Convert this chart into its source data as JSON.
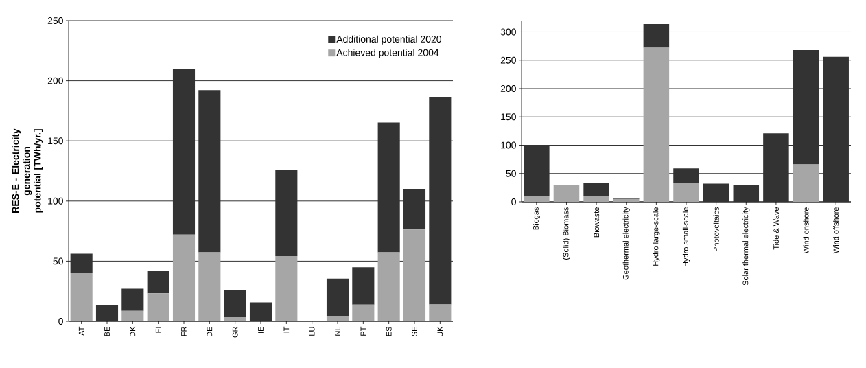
{
  "chart_data": [
    {
      "type": "bar",
      "stacked": true,
      "ylabel": "RES-E - Electricity generation potential [TWh/yr.]",
      "categories": [
        "AT",
        "BE",
        "DK",
        "FI",
        "FR",
        "DE",
        "GR",
        "IE",
        "IT",
        "LU",
        "NL",
        "PT",
        "ES",
        "SE",
        "UK"
      ],
      "series": [
        {
          "name": "Achieved potential 2004",
          "color": "#a6a6a6",
          "values": [
            40.5,
            0,
            8.7,
            23.2,
            72,
            57.4,
            3.4,
            0,
            54.2,
            0,
            4.6,
            13.9,
            57.4,
            76.3,
            14
          ]
        },
        {
          "name": "Additional potential 2020",
          "color": "#333333",
          "values": [
            15.7,
            13.7,
            18.4,
            18.5,
            138,
            134.8,
            22.8,
            15.7,
            71.5,
            0,
            30.9,
            31,
            107.9,
            33.7,
            172
          ]
        }
      ],
      "ylim": [
        0,
        250
      ],
      "yticks": [
        0,
        50,
        100,
        150,
        200,
        250
      ],
      "grid": "y",
      "legend": "top right"
    },
    {
      "type": "bar",
      "stacked": true,
      "categories": [
        "Biogas",
        "(Solid) Biomass",
        "Biowaste",
        "Geothermal electricity",
        "Hydro large-scale",
        "Hydro small-scale",
        "Photovoltaics",
        "Solar thermal electricity",
        "Tide & Wave",
        "Wind onshore",
        "Wind offshore"
      ],
      "series": [
        {
          "color": "#a6a6a6",
          "values": [
            10,
            30,
            10,
            5,
            272,
            34,
            0,
            0,
            0,
            66,
            0
          ]
        },
        {
          "color": "#333333",
          "values": [
            90,
            0,
            24,
            2,
            42,
            25,
            32,
            30,
            121,
            202,
            256
          ]
        }
      ],
      "ylim": [
        0,
        320
      ],
      "yticks": [
        0,
        50,
        100,
        150,
        200,
        250,
        300
      ],
      "grid": "y"
    }
  ]
}
